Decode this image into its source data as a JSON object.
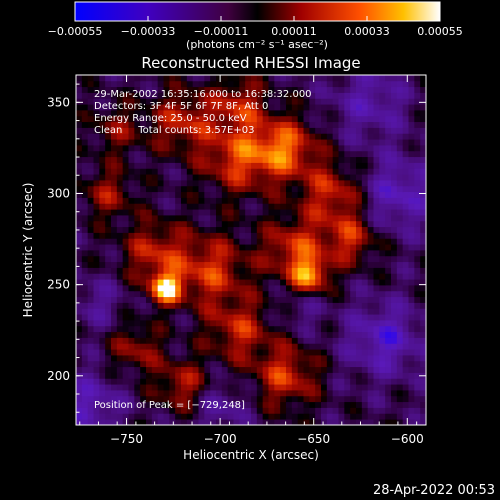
{
  "chart_data": {
    "type": "heatmap",
    "title": "Reconstructed RHESSI Image",
    "xlabel": "Heliocentric X (arcsec)",
    "ylabel": "Heliocentric Y (arcsec)",
    "xlim": [
      -777,
      -590
    ],
    "ylim": [
      173,
      365
    ],
    "x_ticks": [
      {
        "value": -750,
        "label": "−750"
      },
      {
        "value": -700,
        "label": "−700"
      },
      {
        "value": -650,
        "label": "−650"
      },
      {
        "value": -600,
        "label": "−600"
      }
    ],
    "y_ticks": [
      {
        "value": 200,
        "label": "200"
      },
      {
        "value": 250,
        "label": "250"
      },
      {
        "value": 300,
        "label": "300"
      },
      {
        "value": 350,
        "label": "350"
      }
    ],
    "colorbar": {
      "range": [
        -0.00055,
        0.00055
      ],
      "unit_label": "(photons cm⁻² s⁻¹ asec⁻²)",
      "ticks": [
        {
          "value": -0.00055,
          "label": "−0.00055"
        },
        {
          "value": -0.00033,
          "label": "−0.00033"
        },
        {
          "value": -0.00011,
          "label": "−0.00011"
        },
        {
          "value": 0.00011,
          "label": "0.00011"
        },
        {
          "value": 0.00033,
          "label": "0.00033"
        },
        {
          "value": 0.00055,
          "label": "0.00055"
        }
      ]
    },
    "annotations": [
      "29-Mar-2002 16:35:16.000 to 16:38:32.000",
      "Detectors: 3F 4F 5F 6F 7F 8F, Att 0",
      "Energy Range: 25.0 - 50.0 keV",
      "Clean     Total counts: 3.57E+03"
    ],
    "peak_label": "Position of Peak = [−729,248]",
    "peak": {
      "x": -729,
      "y": 248
    },
    "blobs": [
      {
        "x": -729,
        "y": 248,
        "amp": 0.00055,
        "sigma": 6
      },
      {
        "x": -735,
        "y": 268,
        "amp": 0.0003,
        "sigma": 12
      },
      {
        "x": -705,
        "y": 258,
        "amp": 0.00034,
        "sigma": 14
      },
      {
        "x": -690,
        "y": 320,
        "amp": 0.00036,
        "sigma": 14
      },
      {
        "x": -665,
        "y": 325,
        "amp": 0.0004,
        "sigma": 12
      },
      {
        "x": -640,
        "y": 300,
        "amp": 0.00032,
        "sigma": 12
      },
      {
        "x": -660,
        "y": 270,
        "amp": 0.00034,
        "sigma": 12
      },
      {
        "x": -652,
        "y": 255,
        "amp": 0.00042,
        "sigma": 7
      },
      {
        "x": -630,
        "y": 275,
        "amp": 0.0003,
        "sigma": 10
      },
      {
        "x": -690,
        "y": 225,
        "amp": 0.0003,
        "sigma": 12
      },
      {
        "x": -665,
        "y": 200,
        "amp": 0.00034,
        "sigma": 12
      },
      {
        "x": -720,
        "y": 195,
        "amp": 0.00028,
        "sigma": 10
      },
      {
        "x": -745,
        "y": 215,
        "amp": 0.00024,
        "sigma": 10
      },
      {
        "x": -760,
        "y": 300,
        "amp": 0.00024,
        "sigma": 10
      },
      {
        "x": -720,
        "y": 340,
        "amp": 0.0003,
        "sigma": 12
      },
      {
        "x": -690,
        "y": 350,
        "amp": 0.00028,
        "sigma": 10
      },
      {
        "x": -755,
        "y": 335,
        "amp": 0.0002,
        "sigma": 10
      },
      {
        "x": -612,
        "y": 220,
        "amp": -0.0003,
        "sigma": 14
      },
      {
        "x": -605,
        "y": 300,
        "amp": -0.00028,
        "sigma": 14
      },
      {
        "x": -620,
        "y": 350,
        "amp": -0.00022,
        "sigma": 14
      },
      {
        "x": -770,
        "y": 185,
        "amp": -0.00026,
        "sigma": 12
      },
      {
        "x": -700,
        "y": 183,
        "amp": -0.00018,
        "sigma": 10
      },
      {
        "x": -765,
        "y": 240,
        "amp": -0.00015,
        "sigma": 10
      },
      {
        "x": -656,
        "y": 236,
        "amp": -0.00012,
        "sigma": 8
      }
    ],
    "cells": [
      60,
      60
    ]
  },
  "footer": {
    "timestamp": "28-Apr-2022 00:53"
  }
}
